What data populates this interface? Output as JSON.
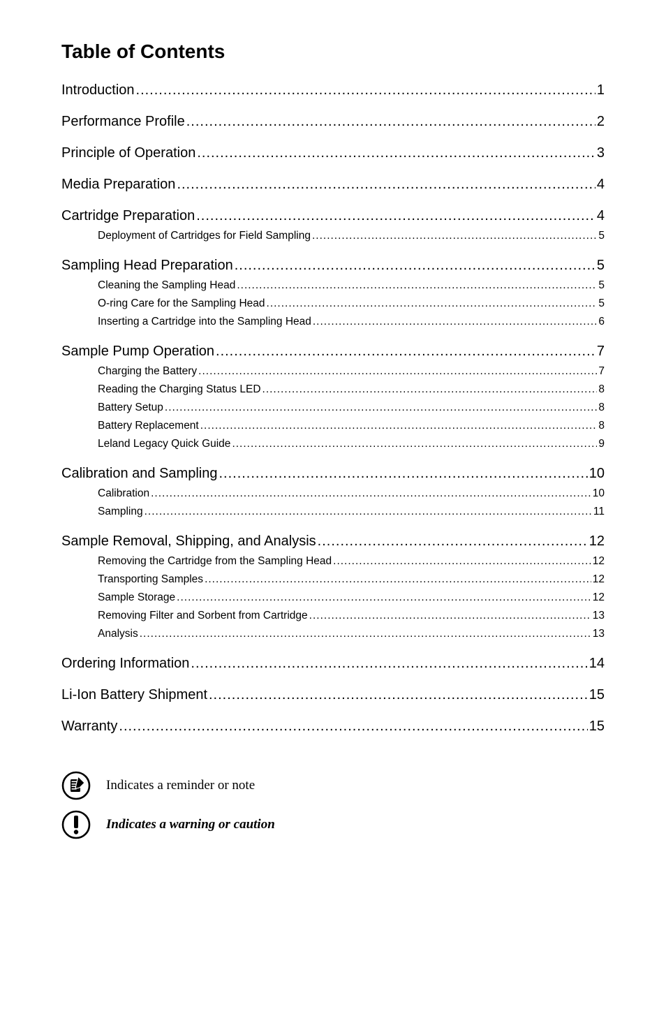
{
  "title": "Table of Contents",
  "entries": [
    {
      "level": 1,
      "label": "Introduction",
      "page": "1"
    },
    {
      "level": 1,
      "label": "Performance Profile",
      "page": "2"
    },
    {
      "level": 1,
      "label": "Principle of Operation",
      "page": "3"
    },
    {
      "level": 1,
      "label": "Media Preparation",
      "page": "4"
    },
    {
      "level": 1,
      "label": "Cartridge Preparation",
      "page": "4"
    },
    {
      "level": 2,
      "label": "Deployment of Cartridges for Field Sampling",
      "page": "5"
    },
    {
      "level": 1,
      "label": "Sampling Head Preparation",
      "page": "5"
    },
    {
      "level": 2,
      "label": "Cleaning the Sampling Head",
      "page": "5"
    },
    {
      "level": 2,
      "label": "O-ring Care for the Sampling Head",
      "page": "5"
    },
    {
      "level": 2,
      "label": "Inserting a Cartridge into the Sampling Head",
      "page": "6"
    },
    {
      "level": 1,
      "label": "Sample Pump Operation",
      "page": "7"
    },
    {
      "level": 2,
      "label": "Charging the Battery",
      "page": "7"
    },
    {
      "level": 2,
      "label": "Reading the Charging Status LED",
      "page": "8"
    },
    {
      "level": 2,
      "label": "Battery Setup",
      "page": "8"
    },
    {
      "level": 2,
      "label": "Battery Replacement",
      "page": "8"
    },
    {
      "level": 2,
      "label": "Leland Legacy Quick Guide",
      "page": "9"
    },
    {
      "level": 1,
      "label": "Calibration and Sampling",
      "page": "10"
    },
    {
      "level": 2,
      "label": "Calibration",
      "page": "10"
    },
    {
      "level": 2,
      "label": "Sampling",
      "page": "11"
    },
    {
      "level": 1,
      "label": "Sample Removal, Shipping, and Analysis",
      "page": "12"
    },
    {
      "level": 2,
      "label": "Removing the Cartridge from the Sampling Head",
      "page": "12"
    },
    {
      "level": 2,
      "label": "Transporting Samples",
      "page": "12"
    },
    {
      "level": 2,
      "label": "Sample Storage",
      "page": "12"
    },
    {
      "level": 2,
      "label": "Removing Filter and Sorbent from Cartridge",
      "page": "13"
    },
    {
      "level": 2,
      "label": "Analysis",
      "page": "13"
    },
    {
      "level": 1,
      "label": "Ordering Information",
      "page": "14"
    },
    {
      "level": 1,
      "label": "Li-Ion Battery Shipment",
      "page": "15"
    },
    {
      "level": 1,
      "label": "Warranty",
      "page": "15"
    }
  ],
  "legend": {
    "note": {
      "text": "Indicates a reminder or note",
      "italic": false
    },
    "caution": {
      "text": "Indicates a warning or caution",
      "italic": true
    }
  },
  "colors": {
    "text": "#000000",
    "background": "#ffffff",
    "iconStroke": "#000000",
    "iconFill": "#ffffff"
  },
  "fontsize": {
    "title": 28,
    "level1": 20,
    "level2": 15.5,
    "legend": 19
  }
}
